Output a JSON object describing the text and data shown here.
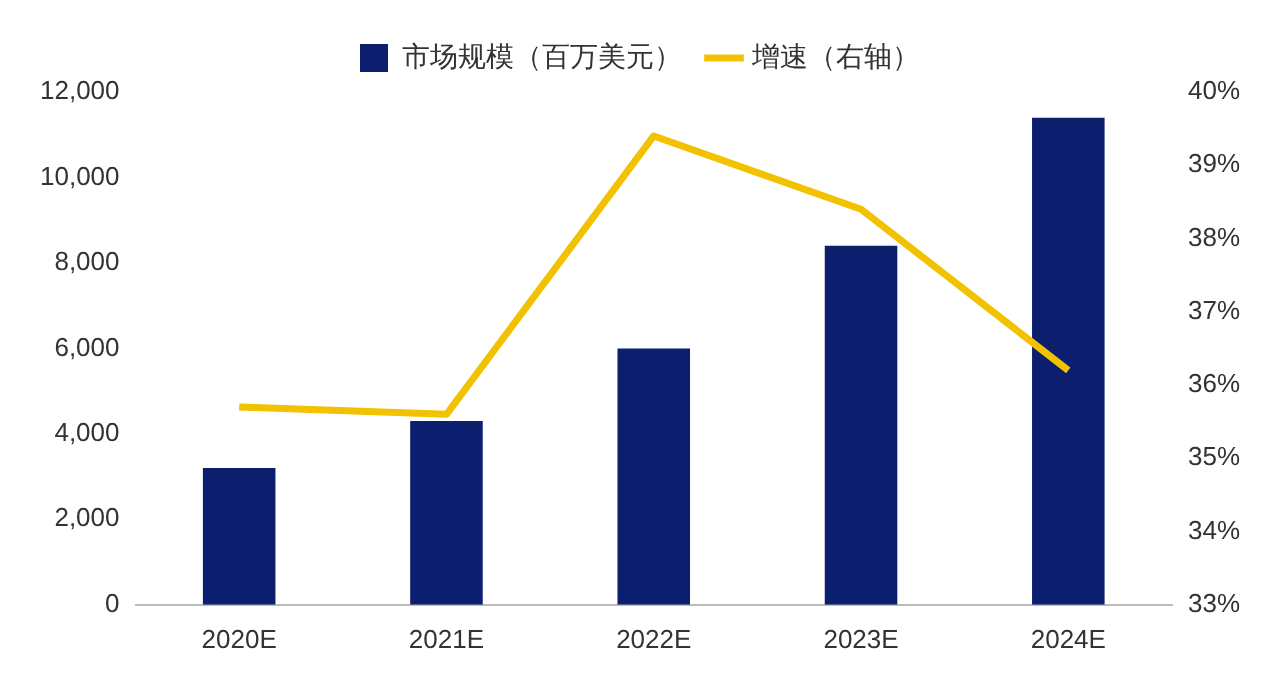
{
  "chart_data": {
    "type": "bar",
    "categories": [
      "2020E",
      "2021E",
      "2022E",
      "2023E",
      "2024E"
    ],
    "series": [
      {
        "name": "市场规模（百万美元）",
        "color": "#0c1f6f",
        "values": [
          3200,
          4300,
          6000,
          8400,
          11400
        ]
      },
      {
        "name": "增速（右轴）",
        "type": "line",
        "axis": "y2",
        "color": "#f2c200",
        "values": [
          35.7,
          35.6,
          39.4,
          38.4,
          36.2
        ]
      }
    ],
    "ylim": [
      0,
      12000
    ],
    "yticks": [
      {
        "value": 0,
        "label": "0"
      },
      {
        "value": 2000,
        "label": "2,000"
      },
      {
        "value": 4000,
        "label": "4,000"
      },
      {
        "value": 6000,
        "label": "6,000"
      },
      {
        "value": 8000,
        "label": "8,000"
      },
      {
        "value": 10000,
        "label": "10,000"
      },
      {
        "value": 12000,
        "label": "12,000"
      }
    ],
    "y2lim": [
      33,
      40
    ],
    "y2ticks": [
      {
        "value": 33,
        "label": "33%"
      },
      {
        "value": 34,
        "label": "34%"
      },
      {
        "value": 35,
        "label": "35%"
      },
      {
        "value": 36,
        "label": "36%"
      },
      {
        "value": 37,
        "label": "37%"
      },
      {
        "value": 38,
        "label": "38%"
      },
      {
        "value": 39,
        "label": "39%"
      },
      {
        "value": 40,
        "label": "40%"
      }
    ],
    "legend": "top",
    "marker": "none",
    "line_style": "solid"
  }
}
